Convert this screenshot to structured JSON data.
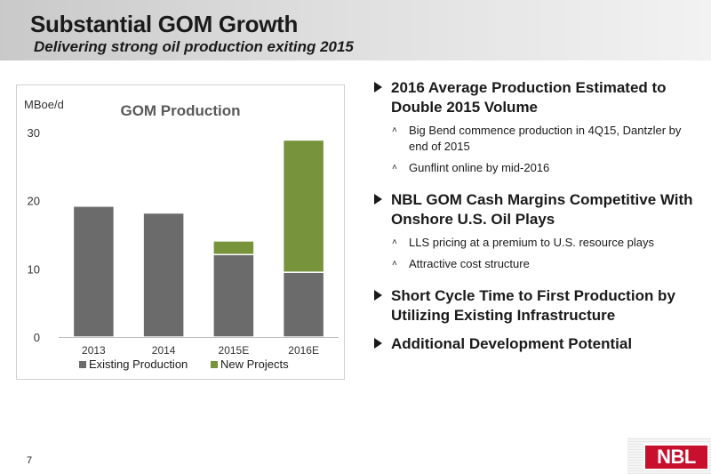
{
  "header": {
    "title": "Substantial GOM Growth",
    "subtitle": "Delivering strong oil production exiting 2015"
  },
  "chart_data": {
    "type": "bar",
    "stacked": true,
    "title": "GOM Production",
    "ylabel": "MBoe/d",
    "xlabel": "",
    "categories": [
      "2013",
      "2014",
      "2015E",
      "2016E"
    ],
    "series": [
      {
        "name": "Existing Production",
        "values": [
          19.2,
          18.2,
          12.1,
          9.5
        ],
        "color": "#6b6b6b"
      },
      {
        "name": "New Projects",
        "values": [
          0,
          0,
          2.0,
          19.4
        ],
        "color": "#77933c"
      }
    ],
    "ylim": [
      0,
      30
    ],
    "yticks": [
      "0",
      "10",
      "20",
      "30"
    ],
    "grid": false,
    "legend": "bottom"
  },
  "bullets": [
    {
      "text": "2016 Average Production Estimated to Double 2015 Volume",
      "subs": [
        "Big Bend commence production in 4Q15, Dantzler by end of 2015",
        "Gunflint online by mid-2016"
      ]
    },
    {
      "text": "NBL GOM Cash Margins Competitive With Onshore U.S. Oil Plays",
      "subs": [
        "LLS pricing at a premium to U.S. resource plays",
        "Attractive cost structure"
      ]
    },
    {
      "text": "Short Cycle Time to First Production by Utilizing Existing Infrastructure",
      "subs": []
    },
    {
      "text": "Additional Development Potential",
      "subs": []
    }
  ],
  "footer": {
    "page_number": "7",
    "logo_text": "NBL"
  }
}
